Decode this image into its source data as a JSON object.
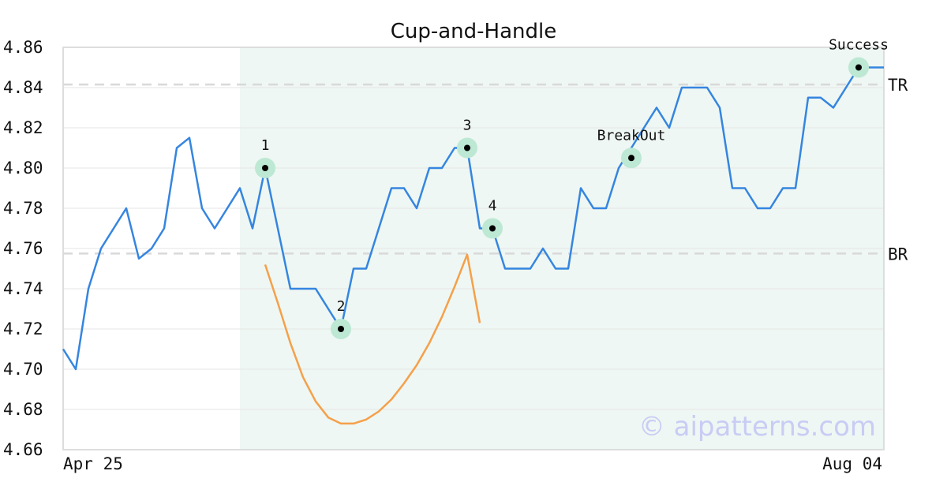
{
  "chart_data": {
    "type": "line",
    "title": "Cup-and-Handle",
    "watermark": "© aipatterns.com",
    "x_start_label": "Apr 25",
    "x_end_label": "Aug 04",
    "ylim": [
      4.66,
      4.86
    ],
    "yticks": [
      "4.66",
      "4.68",
      "4.70",
      "4.72",
      "4.74",
      "4.76",
      "4.78",
      "4.80",
      "4.82",
      "4.84",
      "4.86"
    ],
    "grid": true,
    "colors": {
      "price": "#3585e0",
      "cup": "#f5a04a",
      "levels": "#d9d9d9",
      "highlight": "#eef7f3",
      "marker_halo": "#bde8d4",
      "marker_dot": "#000000"
    },
    "highlight_range": [
      14,
      65
    ],
    "price": [
      4.71,
      4.7,
      4.74,
      4.76,
      4.77,
      4.78,
      4.755,
      4.76,
      4.77,
      4.81,
      4.815,
      4.78,
      4.77,
      4.78,
      4.79,
      4.77,
      4.8,
      4.77,
      4.74,
      4.74,
      4.74,
      4.73,
      4.72,
      4.75,
      4.75,
      4.77,
      4.79,
      4.79,
      4.78,
      4.8,
      4.8,
      4.81,
      4.81,
      4.77,
      4.77,
      4.75,
      4.75,
      4.75,
      4.76,
      4.75,
      4.75,
      4.79,
      4.78,
      4.78,
      4.8,
      4.81,
      4.82,
      4.83,
      4.82,
      4.84,
      4.84,
      4.84,
      4.83,
      4.79,
      4.79,
      4.78,
      4.78,
      4.79,
      4.79,
      4.835,
      4.835,
      4.83,
      4.84,
      4.85,
      4.85,
      4.85
    ],
    "cup_curve": {
      "x": [
        16,
        17,
        18,
        19,
        20,
        21,
        22,
        23,
        24,
        25,
        26,
        27,
        28,
        29,
        30,
        31,
        32,
        33
      ],
      "y": [
        4.752,
        4.733,
        4.713,
        4.696,
        4.684,
        4.676,
        4.673,
        4.673,
        4.675,
        4.679,
        4.685,
        4.693,
        4.702,
        4.713,
        4.726,
        4.741,
        4.757,
        4.723
      ]
    },
    "levels": [
      {
        "label": "TR",
        "value": 4.8415
      },
      {
        "label": "BR",
        "value": 4.7575
      }
    ],
    "annotations": [
      {
        "label": "1",
        "x": 16,
        "y": 4.8,
        "position": "above"
      },
      {
        "label": "2",
        "x": 22,
        "y": 4.72,
        "position": "above"
      },
      {
        "label": "3",
        "x": 32,
        "y": 4.81,
        "position": "above"
      },
      {
        "label": "4",
        "x": 34,
        "y": 4.77,
        "position": "above"
      },
      {
        "label": "BreakOut",
        "x": 45,
        "y": 4.805,
        "position": "above"
      },
      {
        "label": "Success",
        "x": 63,
        "y": 4.85,
        "position": "above"
      }
    ]
  }
}
